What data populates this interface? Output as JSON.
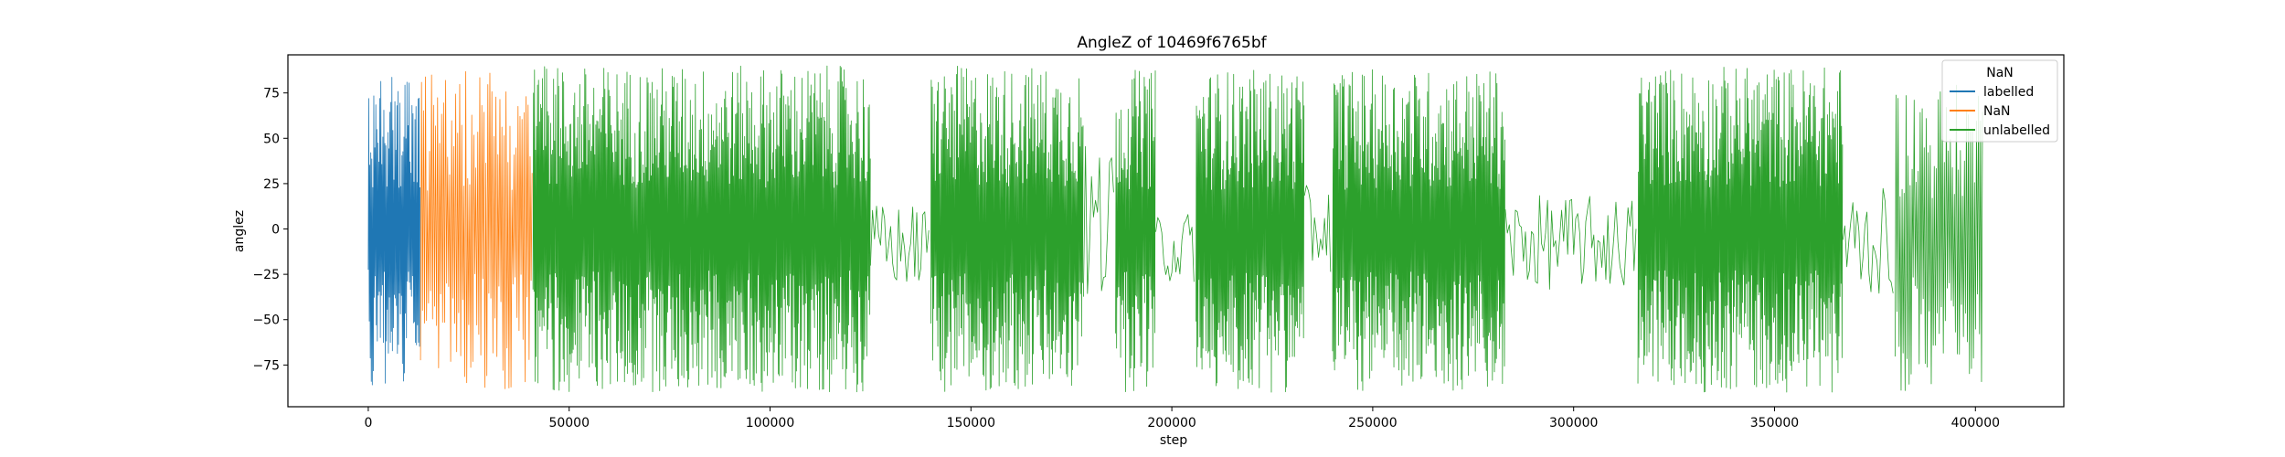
{
  "chart_data": {
    "type": "line",
    "title": "AngleZ of 10469f6765bf",
    "xlabel": "step",
    "ylabel": "anglez",
    "xlim": [
      -20000,
      422000
    ],
    "ylim": [
      -98,
      96
    ],
    "xticks": [
      0,
      50000,
      100000,
      150000,
      200000,
      250000,
      300000,
      350000,
      400000
    ],
    "xtick_labels": [
      "0",
      "50000",
      "100000",
      "150000",
      "200000",
      "250000",
      "300000",
      "350000",
      "400000"
    ],
    "yticks": [
      75,
      50,
      25,
      0,
      -25,
      -50,
      -75
    ],
    "ytick_labels": [
      "75",
      "50",
      "25",
      "0",
      "−25",
      "−50",
      "−75"
    ],
    "grid": false,
    "legend": {
      "title": "NaN",
      "placement": "top-right",
      "entries": [
        "labelled",
        "NaN",
        "unlabelled"
      ]
    },
    "series": [
      {
        "name": "labelled",
        "color": "#1f77b4",
        "segments": [
          {
            "x_start": 0,
            "x_end": 13000,
            "y_min": -88,
            "y_max": 87,
            "density": "dense"
          }
        ]
      },
      {
        "name": "NaN",
        "color": "#ff7f0e",
        "segments": [
          {
            "x_start": 13000,
            "x_end": 41000,
            "y_min": -90,
            "y_max": 87,
            "density": "medium"
          }
        ]
      },
      {
        "name": "unlabelled",
        "color": "#2ca02c",
        "segments": [
          {
            "x_start": 41000,
            "x_end": 125000,
            "y_min": -90,
            "y_max": 90,
            "density": "dense"
          },
          {
            "x_start": 125000,
            "x_end": 140000,
            "y_min": -40,
            "y_max": 20,
            "density": "sparse"
          },
          {
            "x_start": 140000,
            "x_end": 178000,
            "y_min": -90,
            "y_max": 90,
            "density": "dense"
          },
          {
            "x_start": 178000,
            "x_end": 186000,
            "y_min": -60,
            "y_max": 60,
            "density": "sparse"
          },
          {
            "x_start": 186000,
            "x_end": 196000,
            "y_min": -90,
            "y_max": 88,
            "density": "dense"
          },
          {
            "x_start": 196000,
            "x_end": 206000,
            "y_min": -35,
            "y_max": 15,
            "density": "sparse"
          },
          {
            "x_start": 206000,
            "x_end": 233000,
            "y_min": -90,
            "y_max": 88,
            "density": "dense"
          },
          {
            "x_start": 233000,
            "x_end": 240000,
            "y_min": -30,
            "y_max": 30,
            "density": "sparse"
          },
          {
            "x_start": 240000,
            "x_end": 283000,
            "y_min": -90,
            "y_max": 88,
            "density": "dense"
          },
          {
            "x_start": 283000,
            "x_end": 316000,
            "y_min": -40,
            "y_max": 25,
            "density": "sparse"
          },
          {
            "x_start": 316000,
            "x_end": 367000,
            "y_min": -90,
            "y_max": 90,
            "density": "dense"
          },
          {
            "x_start": 367000,
            "x_end": 380000,
            "y_min": -45,
            "y_max": 30,
            "density": "sparse"
          },
          {
            "x_start": 380000,
            "x_end": 402000,
            "y_min": -90,
            "y_max": 80,
            "density": "medium"
          }
        ]
      }
    ]
  }
}
